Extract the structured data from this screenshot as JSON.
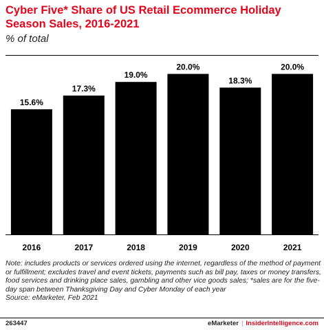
{
  "title": "Cyber Five* Share of US Retail Ecommerce Holiday Season Sales, 2016-2021",
  "subtitle": "% of total",
  "chart_data": {
    "type": "bar",
    "categories": [
      "2016",
      "2017",
      "2018",
      "2019",
      "2020",
      "2021"
    ],
    "values": [
      15.6,
      17.3,
      19.0,
      20.0,
      18.3,
      20.0
    ],
    "value_labels": [
      "15.6%",
      "17.3%",
      "19.0%",
      "20.0%",
      "18.3%",
      "20.0%"
    ],
    "title": "Cyber Five* Share of US Retail Ecommerce Holiday Season Sales, 2016-2021",
    "xlabel": "",
    "ylabel": "",
    "ylim": [
      0,
      21.5
    ],
    "grid": false,
    "bar_color": "#000000"
  },
  "note": "Note: includes products or services ordered using the internet, regardless of the method of payment or fulfillment; excludes travel and event tickets, payments such as bill pay, taxes or money transfers, food services and drinking place sales, gambling and other vice goods sales; *sales are for the five-day span between Thanksgiving Day and Cyber Monday of each year",
  "source": "Source: eMarketer, Feb 2021",
  "footer": {
    "id": "263447",
    "brand_left": "eMarketer",
    "separator": "|",
    "brand_right": "InsiderIntelligence.com"
  },
  "colors": {
    "accent": "#e3051b",
    "bar": "#000000"
  }
}
